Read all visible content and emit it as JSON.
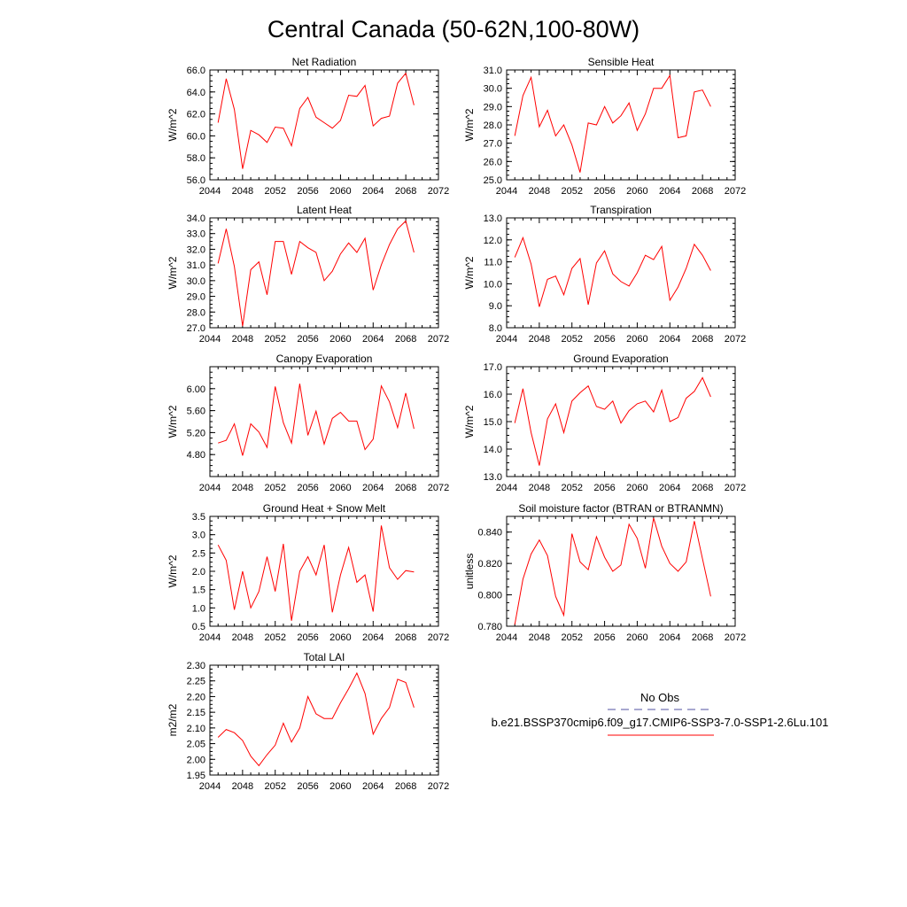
{
  "figure": {
    "title": "Central Canada (50-62N,100-80W)"
  },
  "legend": {
    "obs_label": "No Obs",
    "model_label": "b.e21.BSSP370cmip6.f09_g17.CMIP6-SSP3-7.0-SSP1-2.6Lu.101",
    "obs_color": "#5050a0",
    "model_color": "#ff0000"
  },
  "chart_data": [
    {
      "type": "line",
      "title": "Net Radiation",
      "ylabel": "W/m^2",
      "xlim": [
        2044,
        2072
      ],
      "ylim": [
        56,
        66
      ],
      "xticks": [
        "2044",
        "2048",
        "2052",
        "2056",
        "2060",
        "2064",
        "2068",
        "2072"
      ],
      "yticks": [
        "56.0",
        "58.0",
        "60.0",
        "62.0",
        "64.0",
        "66.0"
      ],
      "x": [
        2045,
        2046,
        2047,
        2048,
        2049,
        2050,
        2051,
        2052,
        2053,
        2054,
        2055,
        2056,
        2057,
        2058,
        2059,
        2060,
        2061,
        2062,
        2063,
        2064,
        2065,
        2066,
        2067,
        2068,
        2069
      ],
      "series": [
        {
          "values": [
            61.2,
            65.2,
            62.4,
            57.0,
            60.5,
            60.1,
            59.4,
            60.8,
            60.7,
            59.1,
            62.5,
            63.5,
            61.7,
            61.2,
            60.7,
            61.4,
            63.7,
            63.6,
            64.6,
            60.9,
            61.6,
            61.8,
            64.8,
            65.7,
            62.8
          ]
        }
      ]
    },
    {
      "type": "line",
      "title": "Sensible Heat",
      "ylabel": "W/m^2",
      "xlim": [
        2044,
        2072
      ],
      "ylim": [
        25,
        31
      ],
      "xticks": [
        "2044",
        "2048",
        "2052",
        "2056",
        "2060",
        "2064",
        "2068",
        "2072"
      ],
      "yticks": [
        "25.0",
        "26.0",
        "27.0",
        "28.0",
        "29.0",
        "30.0",
        "31.0"
      ],
      "x": [
        2045,
        2046,
        2047,
        2048,
        2049,
        2050,
        2051,
        2052,
        2053,
        2054,
        2055,
        2056,
        2057,
        2058,
        2059,
        2060,
        2061,
        2062,
        2063,
        2064,
        2065,
        2066,
        2067,
        2068,
        2069
      ],
      "series": [
        {
          "values": [
            27.4,
            29.6,
            30.6,
            27.9,
            28.8,
            27.4,
            28.0,
            26.9,
            25.4,
            28.1,
            28.0,
            29.0,
            28.1,
            28.5,
            29.2,
            27.7,
            28.6,
            30.0,
            30.0,
            30.7,
            27.3,
            27.4,
            29.8,
            29.9,
            29.0
          ]
        }
      ]
    },
    {
      "type": "line",
      "title": "Latent Heat",
      "ylabel": "W/m^2",
      "xlim": [
        2044,
        2072
      ],
      "ylim": [
        27,
        34
      ],
      "xticks": [
        "2044",
        "2048",
        "2052",
        "2056",
        "2060",
        "2064",
        "2068",
        "2072"
      ],
      "yticks": [
        "27.0",
        "28.0",
        "29.0",
        "30.0",
        "31.0",
        "32.0",
        "33.0",
        "34.0"
      ],
      "x": [
        2045,
        2046,
        2047,
        2048,
        2049,
        2050,
        2051,
        2052,
        2053,
        2054,
        2055,
        2056,
        2057,
        2058,
        2059,
        2060,
        2061,
        2062,
        2063,
        2064,
        2065,
        2066,
        2067,
        2068,
        2069
      ],
      "series": [
        {
          "values": [
            31.1,
            33.3,
            30.9,
            27.1,
            30.7,
            31.2,
            29.1,
            32.5,
            32.5,
            30.4,
            32.5,
            32.1,
            31.8,
            30.0,
            30.6,
            31.7,
            32.4,
            31.8,
            32.7,
            29.4,
            31.0,
            32.3,
            33.3,
            33.8,
            31.8
          ]
        }
      ]
    },
    {
      "type": "line",
      "title": "Transpiration",
      "ylabel": "W/m^2",
      "xlim": [
        2044,
        2072
      ],
      "ylim": [
        8,
        13
      ],
      "xticks": [
        "2044",
        "2048",
        "2052",
        "2056",
        "2060",
        "2064",
        "2068",
        "2072"
      ],
      "yticks": [
        "8.0",
        "9.0",
        "10.0",
        "11.0",
        "12.0",
        "13.0"
      ],
      "x": [
        2045,
        2046,
        2047,
        2048,
        2049,
        2050,
        2051,
        2052,
        2053,
        2054,
        2055,
        2056,
        2057,
        2058,
        2059,
        2060,
        2061,
        2062,
        2063,
        2064,
        2065,
        2066,
        2067,
        2068,
        2069
      ],
      "series": [
        {
          "values": [
            11.2,
            12.1,
            10.9,
            8.95,
            10.2,
            10.35,
            9.5,
            10.7,
            11.15,
            9.05,
            10.95,
            11.5,
            10.45,
            10.1,
            9.9,
            10.5,
            11.3,
            11.1,
            11.7,
            9.25,
            9.85,
            10.7,
            11.8,
            11.3,
            10.6
          ]
        }
      ]
    },
    {
      "type": "line",
      "title": "Canopy Evaporation",
      "ylabel": "W/m^2",
      "xlim": [
        2044,
        2072
      ],
      "ylim": [
        4.4,
        6.4
      ],
      "xticks": [
        "2044",
        "2048",
        "2052",
        "2056",
        "2060",
        "2064",
        "2068",
        "2072"
      ],
      "yticks": [
        "4.80",
        "5.20",
        "5.60",
        "6.00"
      ],
      "ytickvals": [
        4.8,
        5.2,
        5.6,
        6.0
      ],
      "x": [
        2045,
        2046,
        2047,
        2048,
        2049,
        2050,
        2051,
        2052,
        2053,
        2054,
        2055,
        2056,
        2057,
        2058,
        2059,
        2060,
        2061,
        2062,
        2063,
        2064,
        2065,
        2066,
        2067,
        2068,
        2069
      ],
      "series": [
        {
          "values": [
            5.01,
            5.06,
            5.36,
            4.78,
            5.36,
            5.21,
            4.93,
            6.04,
            5.38,
            5.01,
            6.09,
            5.15,
            5.59,
            4.99,
            5.46,
            5.57,
            5.41,
            5.41,
            4.89,
            5.08,
            6.05,
            5.76,
            5.29,
            5.92,
            5.27
          ]
        }
      ]
    },
    {
      "type": "line",
      "title": "Ground Evaporation",
      "ylabel": "W/m^2",
      "xlim": [
        2044,
        2072
      ],
      "ylim": [
        13,
        17
      ],
      "xticks": [
        "2044",
        "2048",
        "2052",
        "2056",
        "2060",
        "2064",
        "2068",
        "2072"
      ],
      "yticks": [
        "13.0",
        "14.0",
        "15.0",
        "16.0",
        "17.0"
      ],
      "x": [
        2045,
        2046,
        2047,
        2048,
        2049,
        2050,
        2051,
        2052,
        2053,
        2054,
        2055,
        2056,
        2057,
        2058,
        2059,
        2060,
        2061,
        2062,
        2063,
        2064,
        2065,
        2066,
        2067,
        2068,
        2069
      ],
      "series": [
        {
          "values": [
            14.95,
            16.2,
            14.6,
            13.4,
            15.1,
            15.65,
            14.6,
            15.75,
            16.05,
            16.3,
            15.55,
            15.45,
            15.75,
            14.95,
            15.4,
            15.65,
            15.75,
            15.35,
            16.15,
            15.0,
            15.15,
            15.85,
            16.1,
            16.6,
            15.9
          ]
        }
      ]
    },
    {
      "type": "line",
      "title": "Ground Heat + Snow Melt",
      "ylabel": "W/m^2",
      "xlim": [
        2044,
        2072
      ],
      "ylim": [
        0.5,
        3.5
      ],
      "xticks": [
        "2044",
        "2048",
        "2052",
        "2056",
        "2060",
        "2064",
        "2068",
        "2072"
      ],
      "yticks": [
        "0.5",
        "1.0",
        "1.5",
        "2.0",
        "2.5",
        "3.0",
        "3.5"
      ],
      "x": [
        2045,
        2046,
        2047,
        2048,
        2049,
        2050,
        2051,
        2052,
        2053,
        2054,
        2055,
        2056,
        2057,
        2058,
        2059,
        2060,
        2061,
        2062,
        2063,
        2064,
        2065,
        2066,
        2067,
        2068,
        2069
      ],
      "series": [
        {
          "values": [
            2.72,
            2.3,
            0.95,
            2.0,
            1.0,
            1.45,
            2.4,
            1.45,
            2.75,
            0.65,
            2.0,
            2.4,
            1.9,
            2.72,
            0.88,
            1.9,
            2.65,
            1.7,
            1.9,
            0.9,
            3.25,
            2.1,
            1.78,
            2.02,
            1.98
          ]
        }
      ]
    },
    {
      "type": "line",
      "title": "Soil moisture factor (BTRAN or BTRANMN)",
      "ylabel": "unitless",
      "xlim": [
        2044,
        2072
      ],
      "ylim": [
        0.78,
        0.85
      ],
      "xticks": [
        "2044",
        "2048",
        "2052",
        "2056",
        "2060",
        "2064",
        "2068",
        "2072"
      ],
      "yticks": [
        "0.780",
        "0.800",
        "0.820",
        "0.840"
      ],
      "ytickvals": [
        0.78,
        0.8,
        0.82,
        0.84
      ],
      "x": [
        2045,
        2046,
        2047,
        2048,
        2049,
        2050,
        2051,
        2052,
        2053,
        2054,
        2055,
        2056,
        2057,
        2058,
        2059,
        2060,
        2061,
        2062,
        2063,
        2064,
        2065,
        2066,
        2067,
        2068,
        2069
      ],
      "series": [
        {
          "values": [
            0.781,
            0.81,
            0.826,
            0.835,
            0.825,
            0.799,
            0.787,
            0.839,
            0.821,
            0.816,
            0.837,
            0.824,
            0.815,
            0.819,
            0.845,
            0.836,
            0.817,
            0.849,
            0.831,
            0.82,
            0.815,
            0.821,
            0.847,
            0.823,
            0.799
          ]
        }
      ]
    },
    {
      "type": "line",
      "title": "Total LAI",
      "ylabel": "m2/m2",
      "xlim": [
        2044,
        2072
      ],
      "ylim": [
        1.95,
        2.3
      ],
      "xticks": [
        "2044",
        "2048",
        "2052",
        "2056",
        "2060",
        "2064",
        "2068",
        "2072"
      ],
      "yticks": [
        "1.95",
        "2.00",
        "2.05",
        "2.10",
        "2.15",
        "2.20",
        "2.25",
        "2.30"
      ],
      "x": [
        2045,
        2046,
        2047,
        2048,
        2049,
        2050,
        2051,
        2052,
        2053,
        2054,
        2055,
        2056,
        2057,
        2058,
        2059,
        2060,
        2061,
        2062,
        2063,
        2064,
        2065,
        2066,
        2067,
        2068,
        2069
      ],
      "series": [
        {
          "values": [
            2.07,
            2.095,
            2.085,
            2.06,
            2.01,
            1.98,
            2.015,
            2.045,
            2.115,
            2.055,
            2.1,
            2.2,
            2.145,
            2.13,
            2.13,
            2.18,
            2.225,
            2.275,
            2.21,
            2.08,
            2.13,
            2.165,
            2.255,
            2.245,
            2.165
          ]
        }
      ]
    }
  ]
}
